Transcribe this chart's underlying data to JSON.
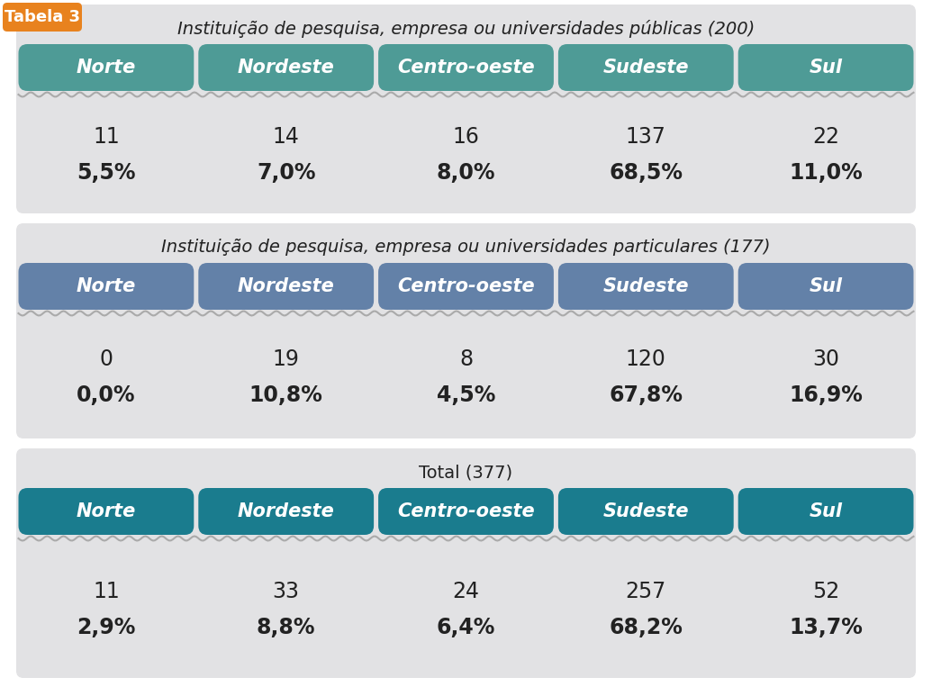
{
  "tabela_label": "Tabela 3",
  "tabela_label_bg": "#E8821E",
  "tabela_label_color": "#FFFFFF",
  "sections": [
    {
      "title": "Instituição de pesquisa, empresa ou universidades públicas (200)",
      "title_italic": true,
      "header_bg": "#4E9B96",
      "header_color": "#FFFFFF",
      "columns": [
        "Norte",
        "Nordeste",
        "Centro-oeste",
        "Sudeste",
        "Sul"
      ],
      "values": [
        "11",
        "14",
        "16",
        "137",
        "22"
      ],
      "percents": [
        "5,5%",
        "7,0%",
        "8,0%",
        "68,5%",
        "11,0%"
      ]
    },
    {
      "title": "Instituição de pesquisa, empresa ou universidades particulares (177)",
      "title_italic": true,
      "header_bg": "#6381A8",
      "header_color": "#FFFFFF",
      "columns": [
        "Norte",
        "Nordeste",
        "Centro-oeste",
        "Sudeste",
        "Sul"
      ],
      "values": [
        "0",
        "19",
        "8",
        "120",
        "30"
      ],
      "percents": [
        "0,0%",
        "10,8%",
        "4,5%",
        "67,8%",
        "16,9%"
      ]
    },
    {
      "title": "Total (377)",
      "title_italic": false,
      "header_bg": "#1A7C8E",
      "header_color": "#FFFFFF",
      "columns": [
        "Norte",
        "Nordeste",
        "Centro-oeste",
        "Sudeste",
        "Sul"
      ],
      "values": [
        "11",
        "33",
        "24",
        "257",
        "52"
      ],
      "percents": [
        "2,9%",
        "8,8%",
        "6,4%",
        "68,2%",
        "13,7%"
      ]
    }
  ],
  "bg_color": "#FFFFFF",
  "section_bg": "#E2E2E4",
  "title_fontsize": 14,
  "header_fontsize": 15,
  "value_fontsize": 17,
  "percent_fontsize": 17,
  "label_fontsize": 13
}
